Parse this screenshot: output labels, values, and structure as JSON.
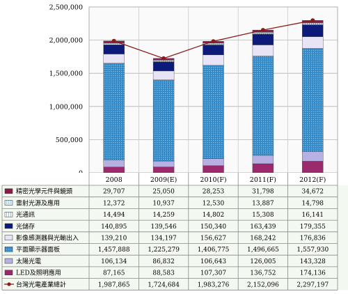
{
  "chart_data": {
    "type": "bar",
    "stacked": true,
    "categories": [
      "2008",
      "2009(E)",
      "2010(F)",
      "2011(F)",
      "2012(F)"
    ],
    "ylim": [
      0,
      2500000
    ],
    "yticks": [
      "0",
      "500,000",
      "1,000,000",
      "1,500,000",
      "2,000,000",
      "2,500,000"
    ],
    "ytick_values": [
      0,
      500000,
      1000000,
      1500000,
      2000000,
      2500000
    ],
    "grid": true,
    "legend_position": "table-below",
    "series": [
      {
        "name": "精密光學元件與鏡頭",
        "color": "#8b1a4a",
        "values": [
          29707,
          25050,
          28253,
          31798,
          34672
        ],
        "labels": [
          "29,707",
          "25,050",
          "28,253",
          "31,798",
          "34,672"
        ]
      },
      {
        "name": "雷射光源及應用",
        "color": "#d9eefb",
        "values": [
          12372,
          10937,
          12530,
          13887,
          14798
        ],
        "labels": [
          "12,372",
          "10,937",
          "12,530",
          "13,887",
          "14,798"
        ]
      },
      {
        "name": "光通訊",
        "color": "#ffffff",
        "values": [
          14494,
          14259,
          14802,
          15308,
          16141
        ],
        "labels": [
          "14,494",
          "14,259",
          "14,802",
          "15,308",
          "16,141"
        ]
      },
      {
        "name": "光儲存",
        "color": "#0c1a7a",
        "values": [
          140895,
          139546,
          150340,
          163439,
          179355
        ],
        "labels": [
          "140,895",
          "139,546",
          "150,340",
          "163,439",
          "179,355"
        ]
      },
      {
        "name": "影像感測器與光輸出入",
        "color": "#e8e4f6",
        "values": [
          139210,
          134197,
          156627,
          168242,
          176836
        ],
        "labels": [
          "139,210",
          "134,197",
          "156,627",
          "168,242",
          "176,836"
        ]
      },
      {
        "name": "平面顯示器面板",
        "color": "#2f86c5",
        "values": [
          1457888,
          1225279,
          1406775,
          1496665,
          1557930
        ],
        "labels": [
          "1,457,888",
          "1,225,279",
          "1,406,775",
          "1,496,665",
          "1,557,930"
        ]
      },
      {
        "name": "太陽光電",
        "color": "#b7b1e3",
        "values": [
          106134,
          86832,
          106643,
          126005,
          143328
        ],
        "labels": [
          "106,134",
          "86,832",
          "106,643",
          "126,005",
          "143,328"
        ]
      },
      {
        "name": "LED及照明應用",
        "color": "#9a2a6c",
        "values": [
          87165,
          88583,
          107307,
          136752,
          174136
        ],
        "labels": [
          "87,165",
          "88,583",
          "107,307",
          "136,752",
          "174,136"
        ]
      }
    ],
    "line_series": {
      "name": "台灣光電產業總計",
      "color": "#8b1a1a",
      "values": [
        1987865,
        1724684,
        1983276,
        2152096,
        2297197
      ],
      "labels": [
        "1,987,865",
        "1,724,684",
        "1,983,276",
        "2,152,096",
        "2,297,197"
      ]
    }
  }
}
